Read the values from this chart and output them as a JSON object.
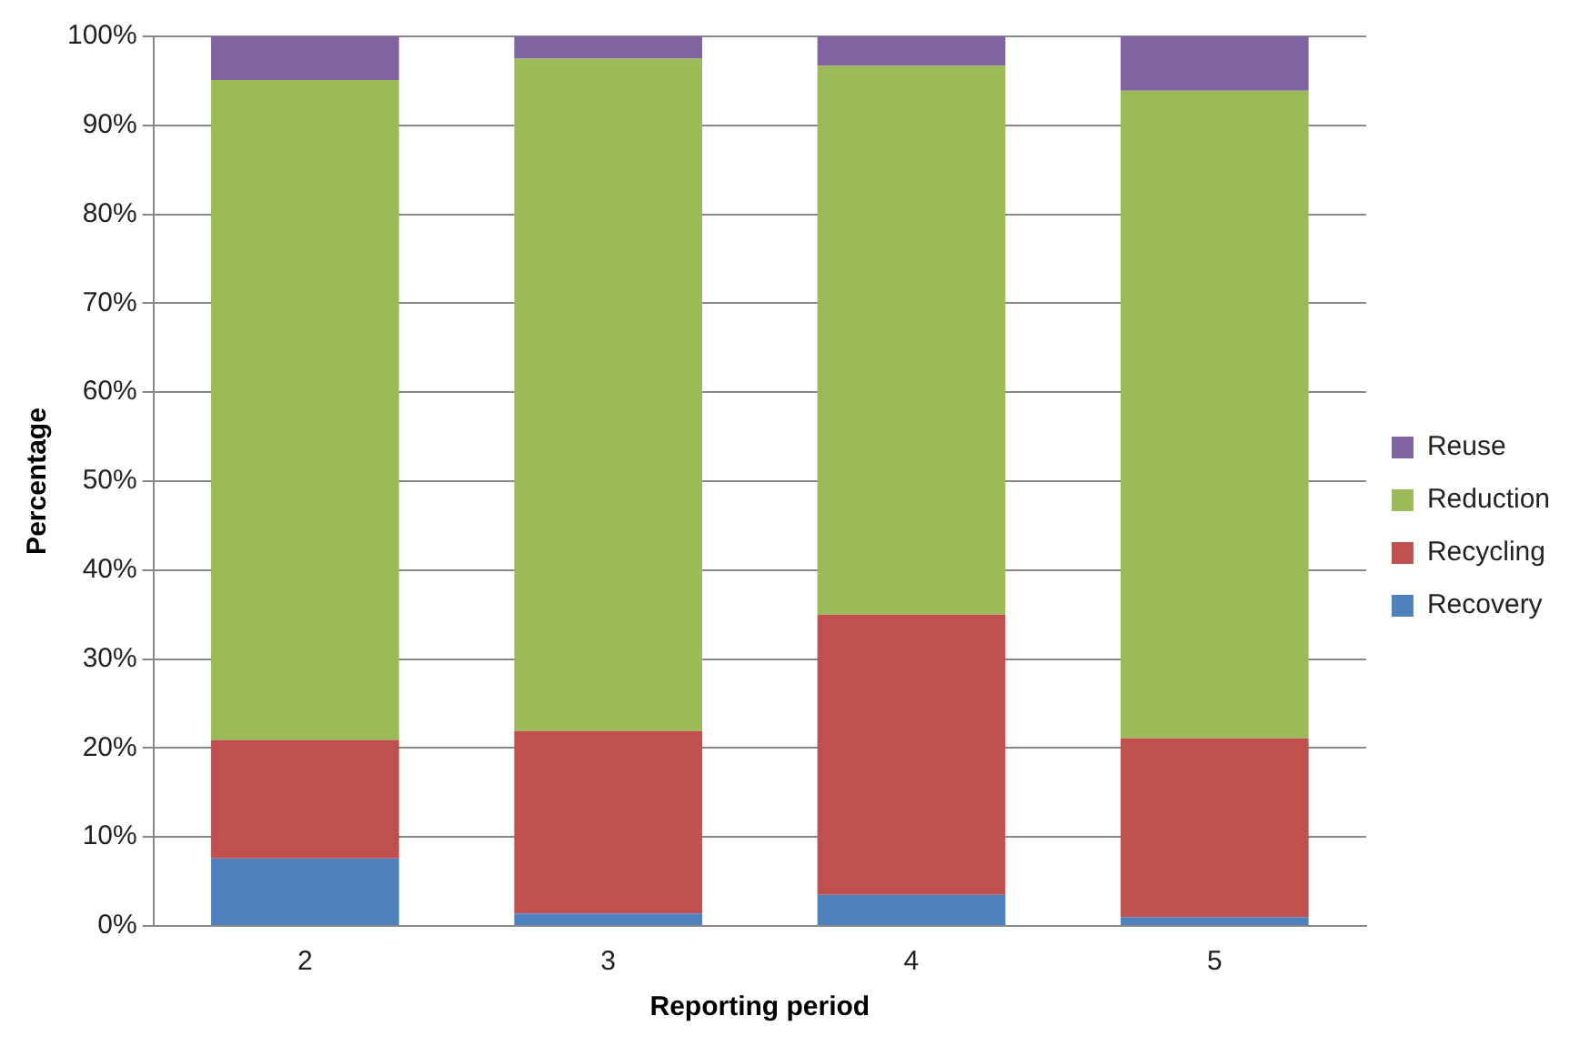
{
  "chart_data": {
    "type": "bar",
    "stacked": true,
    "xlabel": "Reporting period",
    "ylabel": "Percentage",
    "categories": [
      "2",
      "3",
      "4",
      "5"
    ],
    "series": [
      {
        "name": "Recovery",
        "color": "#4f81bd",
        "values": [
          7.6,
          1.4,
          3.5,
          1.0
        ]
      },
      {
        "name": "Recycling",
        "color": "#c0504d",
        "values": [
          13.3,
          20.5,
          31.5,
          20.1
        ]
      },
      {
        "name": "Reduction",
        "color": "#9bbb59",
        "values": [
          74.2,
          75.6,
          61.7,
          72.8
        ]
      },
      {
        "name": "Reuse",
        "color": "#8064a2",
        "values": [
          4.9,
          2.5,
          3.3,
          6.1
        ]
      }
    ],
    "ylim": [
      0,
      100
    ],
    "yticks": [
      {
        "value": 0,
        "label": "0%"
      },
      {
        "value": 10,
        "label": "10%"
      },
      {
        "value": 20,
        "label": "20%"
      },
      {
        "value": 30,
        "label": "30%"
      },
      {
        "value": 40,
        "label": "40%"
      },
      {
        "value": 50,
        "label": "50%"
      },
      {
        "value": 60,
        "label": "60%"
      },
      {
        "value": 70,
        "label": "70%"
      },
      {
        "value": 80,
        "label": "80%"
      },
      {
        "value": 90,
        "label": "90%"
      },
      {
        "value": 100,
        "label": "100%"
      }
    ],
    "grid": "y",
    "legend": "right"
  }
}
